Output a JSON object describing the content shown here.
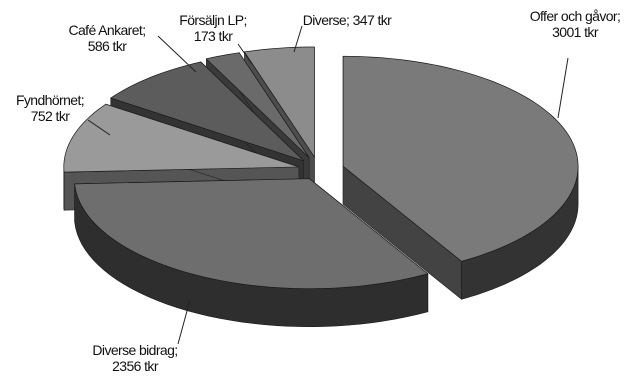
{
  "chart_data": {
    "type": "pie",
    "title": "",
    "unit": "tkr",
    "slices": [
      {
        "label": "Offer och gåvor",
        "value": 3001,
        "text": [
          "Offer och gåvor;",
          "3001 tkr"
        ],
        "color": "#7a7a7a"
      },
      {
        "label": "Diverse bidrag",
        "value": 2356,
        "text": [
          "Diverse bidrag;",
          "2356 tkr"
        ],
        "color": "#6e6e6e"
      },
      {
        "label": "Fyndhörnet",
        "value": 752,
        "text": [
          "Fyndhörnet;",
          "752 tkr"
        ],
        "color": "#9a9a9a"
      },
      {
        "label": "Café Ankaret",
        "value": 586,
        "text": [
          "Café Ankaret;",
          "586 tkr"
        ],
        "color": "#5c5c5c"
      },
      {
        "label": "Försäljn LP",
        "value": 173,
        "text": [
          "Försäljn LP;",
          "173 tkr"
        ],
        "color": "#6a6a6a"
      },
      {
        "label": "Diverse",
        "value": 347,
        "text": [
          "Diverse; 347 tkr"
        ],
        "color": "#8c8c8c"
      }
    ],
    "legend": "none",
    "style": "3d-exploded"
  }
}
